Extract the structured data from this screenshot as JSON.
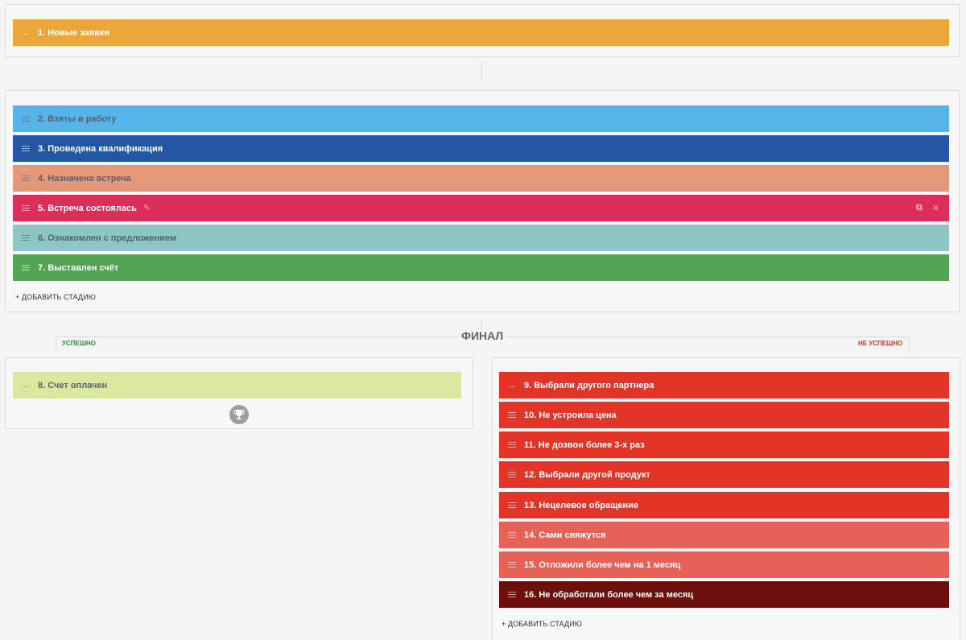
{
  "first_stage": {
    "label": "1. Новые заявки",
    "color": "#eba63a"
  },
  "process_stages": [
    {
      "label": "2. Взяты в работу",
      "color": "#55b5eb"
    },
    {
      "label": "3. Проведена квалификация",
      "color": "#2456a3"
    },
    {
      "label": "4. Назначена встреча",
      "color": "#e59779"
    },
    {
      "label": "5. Встреча состоялась",
      "color": "#db2f5b"
    },
    {
      "label": "6. Ознакомлен с предложением",
      "color": "#8bc6c4"
    },
    {
      "label": "7. Выставлен счёт",
      "color": "#53a553"
    }
  ],
  "add_stage_label": "+ ДОБАВИТЬ СТАДИЮ",
  "final": {
    "title": "ФИНАЛ",
    "success_label": "УСПЕШНО",
    "failure_label": "НЕ УСПЕШНО"
  },
  "success_stage": {
    "label": "8. Счет оплачен",
    "color": "#d9e89e"
  },
  "failure_stages": [
    {
      "label": "9. Выбрали другого партнера",
      "color": "#e23427"
    },
    {
      "label": "10. Не устроила цена",
      "color": "#e23427"
    },
    {
      "label": "11. Не дозвон более 3-х раз",
      "color": "#e23427"
    },
    {
      "label": "12. Выбрали другой продукт",
      "color": "#e23427"
    },
    {
      "label": "13. Нецелевое обращение",
      "color": "#e23427"
    },
    {
      "label": "14. Сами свяжутся",
      "color": "#e66158"
    },
    {
      "label": "15. Отложили более чем на 1 месяц",
      "color": "#e66158"
    },
    {
      "label": "16. Не обработали более чем за месяц",
      "color": "#6b100d"
    }
  ],
  "failure_add_stage_label": "+ ДОБАВИТЬ СТАДИЮ"
}
